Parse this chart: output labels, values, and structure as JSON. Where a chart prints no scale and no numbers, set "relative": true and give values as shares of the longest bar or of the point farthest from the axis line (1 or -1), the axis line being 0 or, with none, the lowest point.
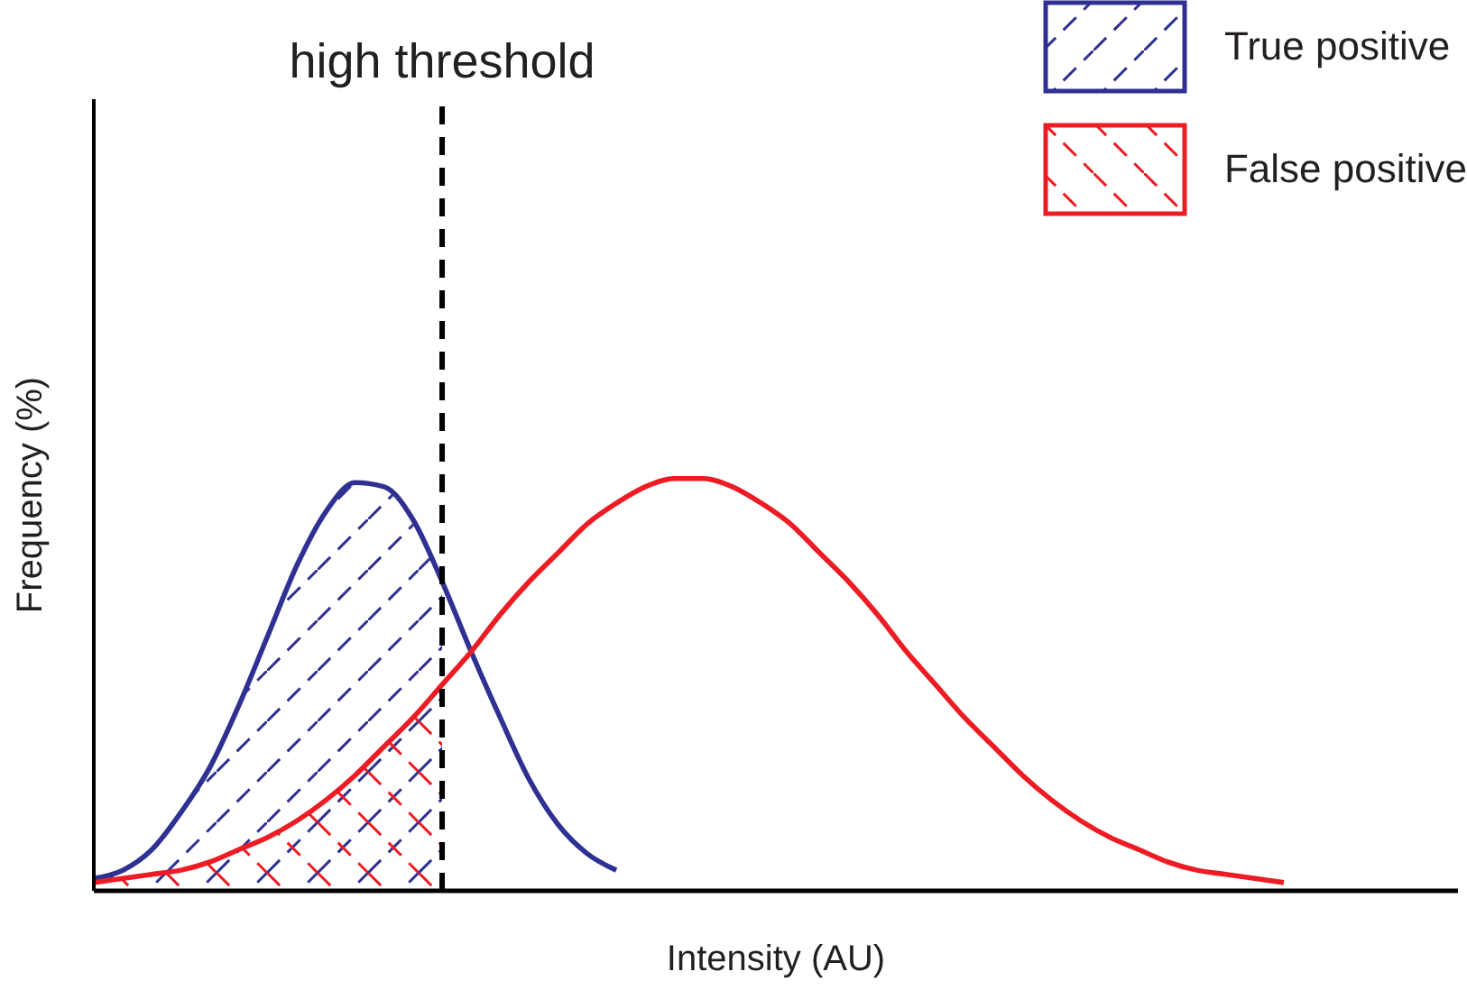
{
  "chart_data": {
    "type": "line",
    "relative": true,
    "xlabel": "Intensity (AU)",
    "ylabel": "Frequency (%)",
    "categories": [
      null,
      null,
      null,
      null,
      null,
      null,
      null,
      null,
      null,
      null,
      null,
      null,
      null,
      null,
      null,
      null,
      null,
      null,
      null,
      null,
      null,
      null,
      null,
      null,
      null,
      null,
      null,
      null,
      null,
      null,
      null,
      null,
      null,
      null,
      null,
      null,
      null,
      null,
      null,
      null,
      null,
      null,
      null,
      null,
      null,
      null,
      null,
      null
    ],
    "series": [
      {
        "color": "#2e3192",
        "values": [
          0.03,
          0.05,
          0.1,
          0.19,
          0.3,
          0.45,
          0.62,
          0.79,
          0.92,
          0.99,
          0.98,
          0.9,
          0.75,
          0.58,
          0.42,
          0.27,
          0.16,
          0.09,
          0.05,
          null,
          null,
          null,
          null,
          null,
          null,
          null,
          null,
          null,
          null,
          null,
          null,
          null,
          null,
          null,
          null,
          null,
          null,
          null,
          null,
          null,
          null,
          null,
          null,
          null,
          null,
          null,
          null,
          null
        ]
      },
      {
        "color": "#ed1c24",
        "values": [
          0.02,
          0.03,
          0.04,
          0.05,
          0.07,
          0.1,
          0.13,
          0.17,
          0.22,
          0.28,
          0.35,
          0.42,
          0.5,
          0.58,
          0.67,
          0.75,
          0.82,
          0.89,
          0.94,
          0.98,
          1.0,
          1.0,
          0.98,
          0.94,
          0.89,
          0.82,
          0.75,
          0.67,
          0.58,
          0.5,
          0.42,
          0.35,
          0.28,
          0.22,
          0.17,
          0.13,
          0.1,
          0.07,
          0.05,
          0.04,
          0.03,
          0.02,
          null,
          null,
          null,
          null,
          null,
          null
        ]
      },
      {
        "type": "area",
        "name": "True positive",
        "color": "#2e3192",
        "values": [
          0.03,
          0.05,
          0.1,
          0.19,
          0.3,
          0.45,
          0.62,
          0.79,
          0.92,
          0.99,
          0.98,
          0.9,
          0.75,
          null,
          null,
          null,
          null,
          null,
          null,
          null,
          null,
          null,
          null,
          null,
          null,
          null,
          null,
          null,
          null,
          null,
          null,
          null,
          null,
          null,
          null,
          null,
          null,
          null,
          null,
          null,
          null,
          null,
          null,
          null,
          null,
          null,
          null,
          null
        ]
      },
      {
        "type": "area",
        "name": "False positive",
        "color": "#ed1c24",
        "values": [
          0.02,
          0.03,
          0.04,
          0.05,
          0.07,
          0.1,
          0.13,
          0.17,
          0.22,
          0.28,
          0.35,
          0.42,
          0.5,
          null,
          null,
          null,
          null,
          null,
          null,
          null,
          null,
          null,
          null,
          null,
          null,
          null,
          null,
          null,
          null,
          null,
          null,
          null,
          null,
          null,
          null,
          null,
          null,
          null,
          null,
          null,
          null,
          null,
          null,
          null,
          null,
          null,
          null,
          null
        ]
      }
    ],
    "annotations": [
      "high threshold"
    ],
    "legend": "top right",
    "grid": false,
    "marker": "none",
    "line_style": "solid"
  }
}
